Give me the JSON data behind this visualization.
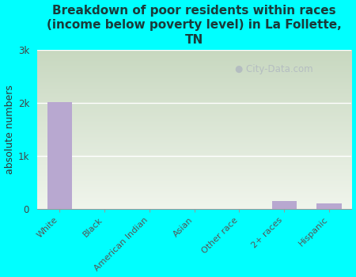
{
  "categories": [
    "White",
    "Black",
    "American Indian",
    "Asian",
    "Other race",
    "2+ races",
    "Hispanic"
  ],
  "values": [
    2010,
    0,
    0,
    0,
    0,
    150,
    100
  ],
  "bar_color": "#b8a8d0",
  "title": "Breakdown of poor residents within races\n(income below poverty level) in La Follette,\nTN",
  "ylabel": "absolute numbers",
  "ylim": [
    0,
    3000
  ],
  "yticks": [
    0,
    1000,
    2000,
    3000
  ],
  "ytick_labels": [
    "0",
    "1k",
    "2k",
    "3k"
  ],
  "background_color": "#00FFFF",
  "watermark": "City-Data.com",
  "title_fontsize": 11,
  "ylabel_fontsize": 9,
  "title_color": "#1a3a3a",
  "grad_top": "#c8d8c0",
  "grad_bottom": "#f0f5ec"
}
